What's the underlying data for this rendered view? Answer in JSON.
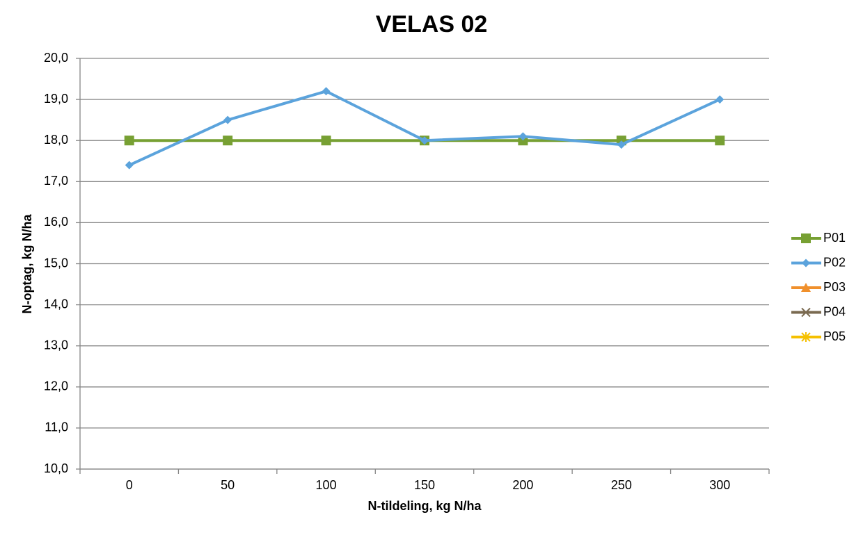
{
  "chart_data": {
    "type": "line",
    "title": "VELAS 02",
    "x_label": "N-tildeling, kg N/ha",
    "y_label": "N-optag, kg N/ha",
    "categories": [
      0,
      50,
      100,
      150,
      200,
      250,
      300
    ],
    "series": [
      {
        "name": "P01",
        "color": "#77a033",
        "marker": "square",
        "values": [
          18.0,
          18.0,
          18.0,
          18.0,
          18.0,
          18.0,
          18.0
        ]
      },
      {
        "name": "P02",
        "color": "#5ba3dc",
        "marker": "diamond",
        "values": [
          17.4,
          18.5,
          19.2,
          18.0,
          18.1,
          17.9,
          19.0
        ]
      },
      {
        "name": "P03",
        "color": "#f0902c",
        "marker": "triangle",
        "values": [
          null,
          null,
          null,
          null,
          null,
          null,
          null
        ]
      },
      {
        "name": "P04",
        "color": "#7a6a50",
        "marker": "x",
        "values": [
          null,
          null,
          null,
          null,
          null,
          null,
          null
        ]
      },
      {
        "name": "P05",
        "color": "#f5c000",
        "marker": "star",
        "values": [
          null,
          null,
          null,
          null,
          null,
          null,
          null
        ]
      }
    ],
    "ylim": [
      10,
      20
    ],
    "yticks": [
      {
        "value": 10,
        "label": "10,0"
      },
      {
        "value": 11,
        "label": "11,0"
      },
      {
        "value": 12,
        "label": "12,0"
      },
      {
        "value": 13,
        "label": "13,0"
      },
      {
        "value": 14,
        "label": "14,0"
      },
      {
        "value": 15,
        "label": "15,0"
      },
      {
        "value": 16,
        "label": "16,0"
      },
      {
        "value": 17,
        "label": "17,0"
      },
      {
        "value": 18,
        "label": "18,0"
      },
      {
        "value": 19,
        "label": "19,0"
      },
      {
        "value": 20,
        "label": "20,0"
      }
    ],
    "grid": true,
    "legend": "right"
  }
}
